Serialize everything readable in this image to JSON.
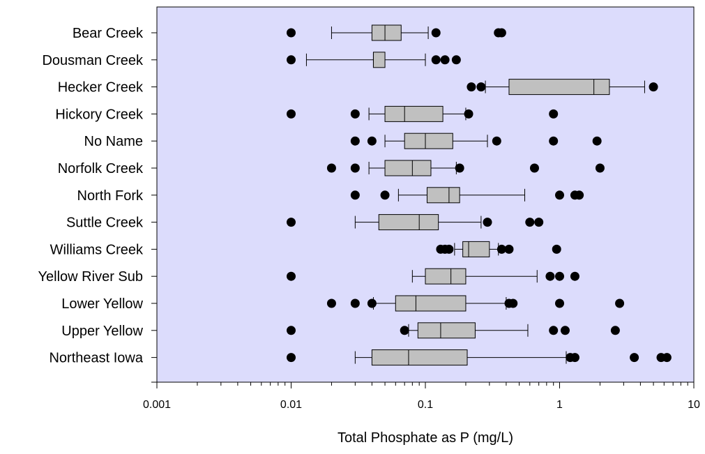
{
  "chart_data": {
    "type": "boxplot-horizontal",
    "title": "",
    "xlabel": "Total Phosphate as P (mg/L)",
    "ylabel": "",
    "x_scale": "log",
    "xlim": [
      0.001,
      10
    ],
    "x_ticks": [
      0.001,
      0.01,
      0.1,
      1,
      10
    ],
    "x_tick_labels": [
      "0.001",
      "0.01",
      "0.1",
      "1",
      "10"
    ],
    "grid": false,
    "legend": "none",
    "colors": {
      "plot_background": "#dcdcfc",
      "box_fill": "#c0c0c0",
      "outlier": "#000000"
    },
    "categories": [
      {
        "name": "Bear Creek",
        "whisker_low": 0.02,
        "q1": 0.04,
        "median": 0.05,
        "q3": 0.066,
        "whisker_high": 0.105,
        "outliers": [
          0.01,
          0.12,
          0.35,
          0.37
        ]
      },
      {
        "name": "Dousman Creek",
        "whisker_low": 0.013,
        "q1": 0.041,
        "median": 0.041,
        "q3": 0.05,
        "whisker_high": 0.1,
        "outliers": [
          0.01,
          0.12,
          0.14,
          0.17
        ]
      },
      {
        "name": "Hecker Creek",
        "whisker_low": 0.28,
        "q1": 0.42,
        "median": 1.8,
        "q3": 2.35,
        "whisker_high": 4.3,
        "outliers": [
          0.22,
          0.26,
          5.0
        ]
      },
      {
        "name": "Hickory Creek",
        "whisker_low": 0.038,
        "q1": 0.05,
        "median": 0.07,
        "q3": 0.135,
        "whisker_high": 0.2,
        "outliers": [
          0.01,
          0.03,
          0.21,
          0.9
        ]
      },
      {
        "name": "No Name",
        "whisker_low": 0.05,
        "q1": 0.07,
        "median": 0.1,
        "q3": 0.16,
        "whisker_high": 0.29,
        "outliers": [
          0.03,
          0.04,
          0.34,
          0.9,
          1.9
        ]
      },
      {
        "name": "Norfolk Creek",
        "whisker_low": 0.038,
        "q1": 0.05,
        "median": 0.08,
        "q3": 0.11,
        "whisker_high": 0.17,
        "outliers": [
          0.02,
          0.03,
          0.18,
          0.65,
          2.0
        ]
      },
      {
        "name": "North Fork",
        "whisker_low": 0.063,
        "q1": 0.103,
        "median": 0.15,
        "q3": 0.18,
        "whisker_high": 0.55,
        "outliers": [
          0.03,
          0.05,
          1.0,
          1.3,
          1.4
        ]
      },
      {
        "name": "Suttle Creek",
        "whisker_low": 0.03,
        "q1": 0.045,
        "median": 0.09,
        "q3": 0.125,
        "whisker_high": 0.26,
        "outliers": [
          0.01,
          0.29,
          0.6,
          0.7
        ]
      },
      {
        "name": "Williams Creek",
        "whisker_low": 0.165,
        "q1": 0.19,
        "median": 0.21,
        "q3": 0.3,
        "whisker_high": 0.35,
        "outliers": [
          0.13,
          0.14,
          0.15,
          0.37,
          0.42,
          0.95
        ]
      },
      {
        "name": "Yellow River Sub",
        "whisker_low": 0.08,
        "q1": 0.1,
        "median": 0.155,
        "q3": 0.2,
        "whisker_high": 0.68,
        "outliers": [
          0.01,
          0.85,
          1.0,
          1.3
        ]
      },
      {
        "name": "Lower Yellow",
        "whisker_low": 0.041,
        "q1": 0.06,
        "median": 0.085,
        "q3": 0.2,
        "whisker_high": 0.4,
        "outliers": [
          0.02,
          0.03,
          0.04,
          0.42,
          0.45,
          1.0,
          2.8
        ]
      },
      {
        "name": "Upper Yellow",
        "whisker_low": 0.075,
        "q1": 0.088,
        "median": 0.13,
        "q3": 0.235,
        "whisker_high": 0.58,
        "outliers": [
          0.01,
          0.07,
          0.9,
          1.1,
          2.6
        ]
      },
      {
        "name": "Northeast Iowa",
        "whisker_low": 0.03,
        "q1": 0.04,
        "median": 0.075,
        "q3": 0.205,
        "whisker_high": 1.12,
        "outliers": [
          0.01,
          1.2,
          1.3,
          3.6,
          5.7,
          6.3
        ]
      }
    ]
  }
}
